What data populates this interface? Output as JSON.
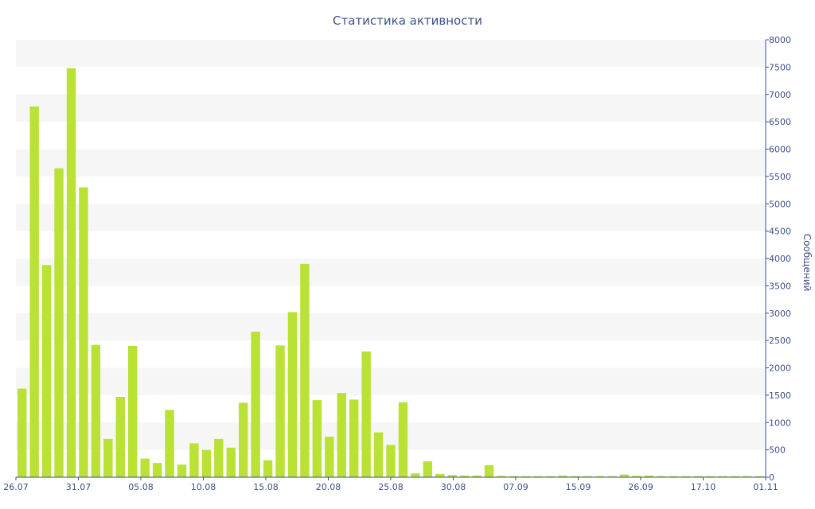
{
  "chart_data": {
    "type": "bar",
    "title": "Статистика активности",
    "xlabel": "",
    "ylabel": "Сообщений",
    "ylim": [
      0,
      8000
    ],
    "y_ticks": [
      0,
      500,
      1000,
      1500,
      2000,
      2500,
      3000,
      3500,
      4000,
      4500,
      5000,
      5500,
      6000,
      6500,
      7000,
      7500,
      8000
    ],
    "y_axis_side": "right",
    "grid": "alternating horizontal bands",
    "bar_color": "#b9e234",
    "band_color": "#f6f6f6",
    "text_color": "#3d4f8a",
    "x_tick_labels": [
      "26.07",
      "31.07",
      "05.08",
      "10.08",
      "15.08",
      "20.08",
      "25.08",
      "30.08",
      "07.09",
      "15.09",
      "26.09",
      "17.10",
      "01.11"
    ],
    "values": [
      1620,
      6780,
      3880,
      5650,
      7480,
      5300,
      2420,
      700,
      1470,
      2400,
      340,
      260,
      1230,
      230,
      620,
      500,
      700,
      540,
      1360,
      2660,
      310,
      2410,
      3020,
      3900,
      1410,
      740,
      1540,
      1420,
      2300,
      820,
      590,
      1370,
      70,
      290,
      60,
      40,
      30,
      30,
      220,
      25,
      20,
      20,
      20,
      20,
      30,
      20,
      20,
      20,
      20,
      50,
      25,
      30,
      20,
      20,
      20,
      20,
      20,
      20,
      20,
      20,
      20
    ]
  }
}
